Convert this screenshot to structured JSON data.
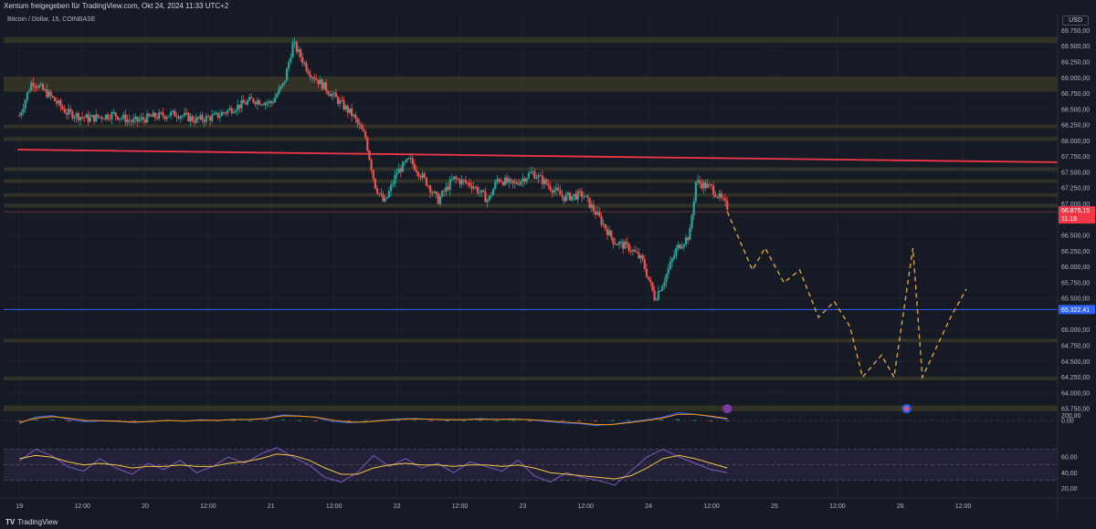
{
  "header": {
    "attribution": "Xentum freigegeben für TradingView.com, Okt 24, 2024 11:33 UTC+2",
    "symbol_line": "Bitcoin / Dollar, 15, COINBASE",
    "currency_button": "USD"
  },
  "footer": {
    "logo_mark": "TV",
    "brand": "TradingView"
  },
  "colors": {
    "background": "#161a25",
    "zone_fill": "#3b3a26",
    "resistance_line": "#f23645",
    "support_line": "#2962ff",
    "bull_candle": "#26a69a",
    "bear_candle": "#ef5350",
    "projection": "#d9a441",
    "macd_line": "#2962ff",
    "signal_line": "#ff9800",
    "rsi_line": "#7e57c2",
    "rsi_ma": "#f5c542"
  },
  "chart_data": {
    "type": "candlestick",
    "symbol": "Bitcoin / Dollar",
    "timeframe": "15",
    "exchange": "COINBASE",
    "x_ticks": [
      "19",
      "12:00",
      "20",
      "12:00",
      "21",
      "12:00",
      "22",
      "12:00",
      "23",
      "12:00",
      "24",
      "12:00",
      "25",
      "12:00",
      "26",
      "12:00"
    ],
    "y_ticks": [
      "69.750,00",
      "69.500,00",
      "69.250,00",
      "69.000,00",
      "68.750,00",
      "68.500,00",
      "68.250,00",
      "68.000,00",
      "67.750,00",
      "67.500,00",
      "67.250,00",
      "67.000,00",
      "66.500,00",
      "66.250,00",
      "66.000,00",
      "65.750,00",
      "65.500,00",
      "65.000,00",
      "64.750,00",
      "64.500,00",
      "64.250,00",
      "64.000,00",
      "63.750,00"
    ],
    "price_path": [
      [
        0,
        68400
      ],
      [
        0.4,
        68950
      ],
      [
        1.0,
        68700
      ],
      [
        1.5,
        68450
      ],
      [
        2.2,
        68350
      ],
      [
        3.0,
        68420
      ],
      [
        3.6,
        68300
      ],
      [
        4.2,
        68380
      ],
      [
        5.0,
        68430
      ],
      [
        5.6,
        68330
      ],
      [
        6.2,
        68380
      ],
      [
        6.8,
        68520
      ],
      [
        7.4,
        68650
      ],
      [
        8.0,
        68600
      ],
      [
        8.4,
        68900
      ],
      [
        8.7,
        69550
      ],
      [
        9.2,
        69100
      ],
      [
        9.6,
        68900
      ],
      [
        10.0,
        68700
      ],
      [
        10.6,
        68400
      ],
      [
        11.0,
        68050
      ],
      [
        11.3,
        67300
      ],
      [
        11.6,
        67000
      ],
      [
        12.0,
        67500
      ],
      [
        12.4,
        67700
      ],
      [
        13.0,
        67300
      ],
      [
        13.3,
        67050
      ],
      [
        13.8,
        67400
      ],
      [
        14.4,
        67300
      ],
      [
        14.9,
        67050
      ],
      [
        15.2,
        67400
      ],
      [
        15.7,
        67300
      ],
      [
        16.3,
        67500
      ],
      [
        16.8,
        67300
      ],
      [
        17.3,
        67100
      ],
      [
        17.9,
        67150
      ],
      [
        18.4,
        66800
      ],
      [
        18.9,
        66400
      ],
      [
        19.4,
        66300
      ],
      [
        19.8,
        66100
      ],
      [
        20.2,
        65500
      ],
      [
        20.5,
        65800
      ],
      [
        20.9,
        66300
      ],
      [
        21.3,
        66500
      ],
      [
        21.5,
        67350
      ],
      [
        22.0,
        67250
      ],
      [
        22.5,
        66950
      ]
    ],
    "last_price": 66875.15,
    "last_price_label": "66.875,15",
    "countdown_label": "11:18",
    "support_price": 65322.41,
    "support_label": "65.322,41",
    "resistance_trendline": [
      [
        0,
        67860
      ],
      [
        33,
        67660
      ]
    ],
    "zones": [
      [
        69550,
        69650
      ],
      [
        68780,
        69020
      ],
      [
        68220,
        68260
      ],
      [
        68020,
        68060
      ],
      [
        67560,
        67580
      ],
      [
        67370,
        67390
      ],
      [
        67150,
        67170
      ],
      [
        66980,
        67000
      ],
      [
        64840,
        64860
      ],
      [
        64200,
        64260
      ],
      [
        63710,
        63800
      ]
    ],
    "projection_path": [
      [
        22.5,
        66875
      ],
      [
        23.3,
        65950
      ],
      [
        23.7,
        66300
      ],
      [
        24.3,
        65750
      ],
      [
        24.8,
        65950
      ],
      [
        25.4,
        65200
      ],
      [
        25.9,
        65450
      ],
      [
        26.4,
        65050
      ],
      [
        26.8,
        64250
      ],
      [
        27.4,
        64600
      ],
      [
        27.8,
        64250
      ],
      [
        28.4,
        66300
      ],
      [
        28.7,
        64250
      ],
      [
        29.6,
        65200
      ],
      [
        30.1,
        65650
      ]
    ],
    "macd": {
      "y_ticks": [
        "200,00",
        "0,00"
      ],
      "series": [
        {
          "values": [
            -120,
            140,
            190,
            40,
            -50,
            -20,
            -40,
            -80,
            -40,
            10,
            -30,
            30,
            0,
            40,
            40,
            90,
            220,
            180,
            120,
            -40,
            -90,
            -60,
            10,
            60,
            80,
            40,
            20,
            30,
            70,
            40,
            60,
            20,
            -40,
            -100,
            -120,
            -200,
            -150,
            -60,
            20,
            120,
            300,
            250,
            140,
            40
          ]
        },
        {
          "values": [
            -80,
            90,
            150,
            90,
            0,
            -10,
            -30,
            -60,
            -40,
            0,
            -20,
            10,
            5,
            30,
            40,
            70,
            180,
            170,
            130,
            20,
            -60,
            -60,
            -10,
            40,
            60,
            50,
            30,
            30,
            50,
            40,
            50,
            30,
            -10,
            -60,
            -100,
            -160,
            -160,
            -90,
            -10,
            80,
            240,
            240,
            170,
            80
          ]
        }
      ]
    },
    "rsi": {
      "y_ticks": [
        "60,00",
        "40,00",
        "20,00"
      ],
      "upper_band": 70,
      "lower_band": 30,
      "mid_line": 50,
      "series": [
        {
          "values": [
            55,
            70,
            62,
            48,
            42,
            58,
            46,
            38,
            52,
            44,
            56,
            40,
            48,
            60,
            52,
            64,
            72,
            60,
            50,
            34,
            28,
            40,
            62,
            48,
            58,
            46,
            52,
            40,
            54,
            48,
            42,
            56,
            36,
            28,
            40,
            34,
            30,
            24,
            42,
            60,
            70,
            60,
            52,
            44,
            40
          ]
        },
        {
          "values": [
            58,
            62,
            60,
            54,
            50,
            52,
            50,
            46,
            48,
            48,
            50,
            48,
            48,
            52,
            54,
            58,
            64,
            62,
            56,
            46,
            38,
            38,
            46,
            50,
            52,
            50,
            50,
            48,
            50,
            50,
            48,
            50,
            46,
            40,
            38,
            36,
            34,
            32,
            36,
            46,
            58,
            62,
            58,
            52,
            46
          ]
        }
      ]
    }
  }
}
